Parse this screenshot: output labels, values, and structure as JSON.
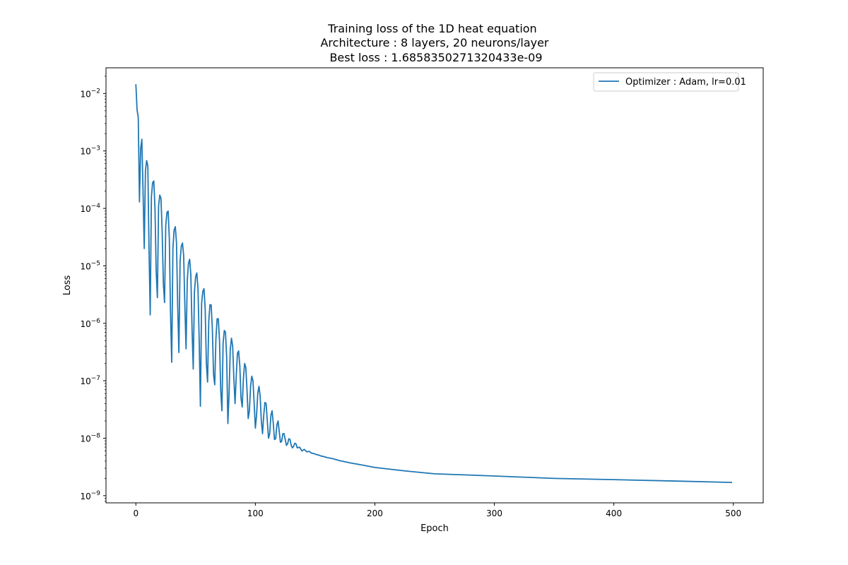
{
  "chart_data": {
    "type": "line",
    "title_lines": [
      "Training loss of the 1D heat equation",
      "Architecture : 8 layers, 20 neurons/layer",
      "Best loss : 1.6858350271320433e-09"
    ],
    "xlabel": "Epoch",
    "ylabel": "Loss",
    "xlim": [
      -25,
      525
    ],
    "ylim": [
      7.5e-10,
      0.028
    ],
    "yscale": "log",
    "x_ticks": [
      0,
      100,
      200,
      300,
      400,
      500
    ],
    "x_tick_labels": [
      "0",
      "100",
      "200",
      "300",
      "400",
      "500"
    ],
    "y_ticks": [
      1e-09,
      1e-08,
      1e-07,
      1e-06,
      1e-05,
      0.0001,
      0.001,
      0.01
    ],
    "y_tick_exponents": [
      "−9",
      "−8",
      "−7",
      "−6",
      "−5",
      "−4",
      "−3",
      "−2"
    ],
    "y_tick_base": "10",
    "grid": false,
    "legend_position": "top-right",
    "series": [
      {
        "name": "Optimizer : Adam, lr=0.01",
        "color": "#1f77b4",
        "points": [
          [
            0,
            0.0145
          ],
          [
            1,
            0.0052
          ],
          [
            2,
            0.0038
          ],
          [
            3,
            0.00013
          ],
          [
            4,
            0.0011
          ],
          [
            5,
            0.0016
          ],
          [
            6,
            0.0002
          ],
          [
            7,
            2e-05
          ],
          [
            8,
            0.00045
          ],
          [
            9,
            0.00068
          ],
          [
            10,
            0.00055
          ],
          [
            11,
            2e-05
          ],
          [
            12,
            1.4e-06
          ],
          [
            13,
            0.00016
          ],
          [
            14,
            0.00028
          ],
          [
            15,
            0.0003
          ],
          [
            16,
            0.0001
          ],
          [
            17,
            8e-06
          ],
          [
            18,
            2.8e-06
          ],
          [
            19,
            0.00011
          ],
          [
            20,
            0.00017
          ],
          [
            21,
            0.00015
          ],
          [
            22,
            4e-05
          ],
          [
            23,
            5e-06
          ],
          [
            24,
            2.3e-06
          ],
          [
            25,
            5e-05
          ],
          [
            26,
            8.5e-05
          ],
          [
            27,
            9e-05
          ],
          [
            28,
            3e-05
          ],
          [
            29,
            1.5e-06
          ],
          [
            30,
            2.1e-07
          ],
          [
            31,
            2e-05
          ],
          [
            32,
            4.2e-05
          ],
          [
            33,
            4.8e-05
          ],
          [
            34,
            2.5e-05
          ],
          [
            35,
            2e-06
          ],
          [
            36,
            3.1e-07
          ],
          [
            37,
            1.2e-05
          ],
          [
            38,
            2.2e-05
          ],
          [
            39,
            2.5e-05
          ],
          [
            40,
            1.5e-05
          ],
          [
            41,
            2e-06
          ],
          [
            42,
            3.6e-07
          ],
          [
            43,
            5.5e-06
          ],
          [
            44,
            1.1e-05
          ],
          [
            45,
            1.3e-05
          ],
          [
            46,
            7e-06
          ],
          [
            47,
            8e-07
          ],
          [
            48,
            1.6e-07
          ],
          [
            49,
            3.5e-06
          ],
          [
            50,
            6.5e-06
          ],
          [
            51,
            7.5e-06
          ],
          [
            52,
            4e-06
          ],
          [
            53,
            5e-07
          ],
          [
            54,
            3.6e-08
          ],
          [
            55,
            2.2e-06
          ],
          [
            56,
            3.6e-06
          ],
          [
            57,
            4e-06
          ],
          [
            58,
            1.8e-06
          ],
          [
            59,
            2e-07
          ],
          [
            60,
            9.5e-08
          ],
          [
            61,
            1.1e-06
          ],
          [
            62,
            2.1e-06
          ],
          [
            63,
            2.1e-06
          ],
          [
            64,
            8e-07
          ],
          [
            65,
            1.3e-07
          ],
          [
            66,
            8.5e-08
          ],
          [
            67,
            5.5e-07
          ],
          [
            68,
            1.2e-06
          ],
          [
            69,
            1.2e-06
          ],
          [
            70,
            5e-07
          ],
          [
            71,
            7e-08
          ],
          [
            72,
            3e-08
          ],
          [
            73,
            4.5e-07
          ],
          [
            74,
            7.5e-07
          ],
          [
            75,
            7e-07
          ],
          [
            76,
            2.5e-07
          ],
          [
            77,
            1.8e-08
          ],
          [
            78,
            6e-08
          ],
          [
            79,
            3.5e-07
          ],
          [
            80,
            5.5e-07
          ],
          [
            81,
            4e-07
          ],
          [
            82,
            1.1e-07
          ],
          [
            83,
            4e-08
          ],
          [
            84,
            1.2e-07
          ],
          [
            85,
            3e-07
          ],
          [
            86,
            3.3e-07
          ],
          [
            87,
            1.8e-07
          ],
          [
            88,
            5e-08
          ],
          [
            89,
            3.5e-08
          ],
          [
            90,
            1.1e-07
          ],
          [
            91,
            2e-07
          ],
          [
            92,
            1.7e-07
          ],
          [
            93,
            7e-08
          ],
          [
            94,
            2.2e-08
          ],
          [
            95,
            3e-08
          ],
          [
            96,
            8e-08
          ],
          [
            97,
            1.2e-07
          ],
          [
            98,
            1e-07
          ],
          [
            99,
            4e-08
          ],
          [
            100,
            1.5e-08
          ],
          [
            101,
            2.5e-08
          ],
          [
            102,
            6e-08
          ],
          [
            103,
            8e-08
          ],
          [
            104,
            5.5e-08
          ],
          [
            105,
            2e-08
          ],
          [
            106,
            1.2e-08
          ],
          [
            107,
            2.5e-08
          ],
          [
            108,
            4.2e-08
          ],
          [
            109,
            4e-08
          ],
          [
            110,
            2e-08
          ],
          [
            111,
            1e-08
          ],
          [
            112,
            1.2e-08
          ],
          [
            113,
            2.5e-08
          ],
          [
            114,
            3e-08
          ],
          [
            115,
            1.8e-08
          ],
          [
            116,
            9.5e-09
          ],
          [
            117,
            9.8e-09
          ],
          [
            118,
            1.7e-08
          ],
          [
            119,
            2e-08
          ],
          [
            120,
            1.3e-08
          ],
          [
            121,
            8.5e-09
          ],
          [
            122,
            8.8e-09
          ],
          [
            123,
            1.2e-08
          ],
          [
            124,
            1.2e-08
          ],
          [
            125,
            9.5e-09
          ],
          [
            126,
            7.5e-09
          ],
          [
            127,
            8e-09
          ],
          [
            128,
            9.8e-09
          ],
          [
            129,
            9.5e-09
          ],
          [
            130,
            7.5e-09
          ],
          [
            131,
            6.8e-09
          ],
          [
            132,
            7.2e-09
          ],
          [
            133,
            8.2e-09
          ],
          [
            134,
            8e-09
          ],
          [
            135,
            6.8e-09
          ],
          [
            137,
            7e-09
          ],
          [
            139,
            6e-09
          ],
          [
            141,
            6.4e-09
          ],
          [
            143,
            5.8e-09
          ],
          [
            145,
            5.9e-09
          ],
          [
            147,
            5.5e-09
          ],
          [
            149,
            5.4e-09
          ],
          [
            151,
            5.2e-09
          ],
          [
            153,
            5.1e-09
          ],
          [
            155,
            4.9e-09
          ],
          [
            157,
            4.8e-09
          ],
          [
            160,
            4.6e-09
          ],
          [
            165,
            4.4e-09
          ],
          [
            170,
            4.1e-09
          ],
          [
            180,
            3.7e-09
          ],
          [
            190,
            3.4e-09
          ],
          [
            200,
            3.1e-09
          ],
          [
            225,
            2.7e-09
          ],
          [
            250,
            2.4e-09
          ],
          [
            275,
            2.3e-09
          ],
          [
            300,
            2.2e-09
          ],
          [
            350,
            2e-09
          ],
          [
            400,
            1.9e-09
          ],
          [
            450,
            1.8e-09
          ],
          [
            499,
            1.7e-09
          ]
        ]
      }
    ]
  }
}
